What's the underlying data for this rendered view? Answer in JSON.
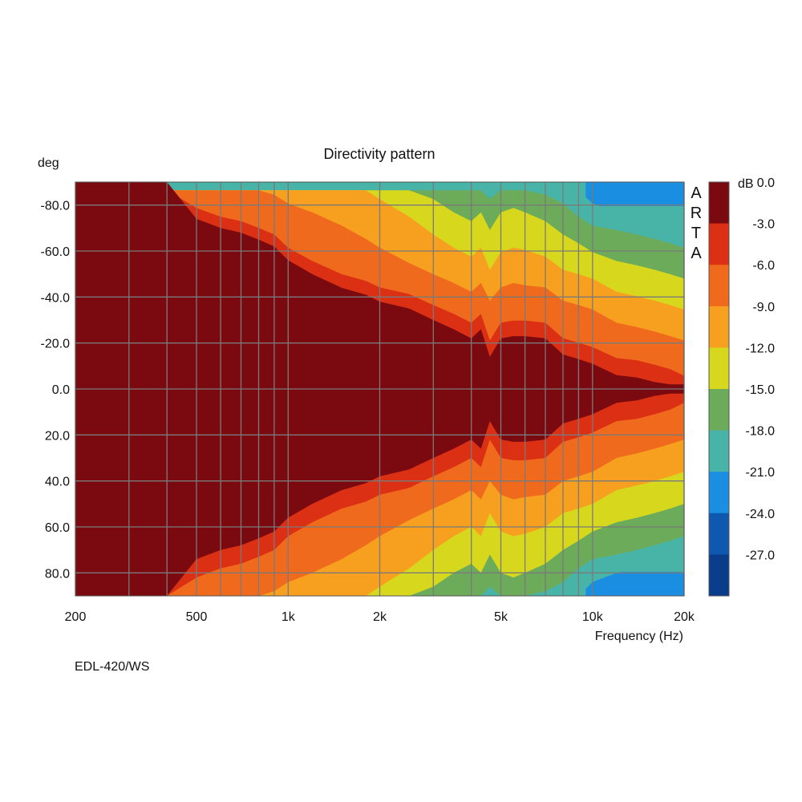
{
  "chart_data": {
    "type": "heatmap",
    "title": "Directivity pattern",
    "ylabel": "deg",
    "xlabel": "Frequency (Hz)",
    "colorbar_label": "dB",
    "watermark": "ARTA",
    "footer": "EDL-420/WS",
    "x_scale": "log",
    "xlim": [
      200,
      20000
    ],
    "ylim": [
      -90,
      90
    ],
    "y_inverted": true,
    "grid": true,
    "x_ticks": [
      {
        "value": 200,
        "label": "200"
      },
      {
        "value": 500,
        "label": "500"
      },
      {
        "value": 1000,
        "label": "1k"
      },
      {
        "value": 2000,
        "label": "2k"
      },
      {
        "value": 5000,
        "label": "5k"
      },
      {
        "value": 10000,
        "label": "10k"
      },
      {
        "value": 20000,
        "label": "20k"
      }
    ],
    "y_ticks": [
      {
        "value": -80,
        "label": "-80.0"
      },
      {
        "value": -60,
        "label": "-60.0"
      },
      {
        "value": -40,
        "label": "-40.0"
      },
      {
        "value": -20,
        "label": "-20.0"
      },
      {
        "value": 0,
        "label": "0.0"
      },
      {
        "value": 20,
        "label": "20.0"
      },
      {
        "value": 40,
        "label": "40.0"
      },
      {
        "value": 60,
        "label": "60.0"
      },
      {
        "value": 80,
        "label": "80.0"
      }
    ],
    "x_gridlines": [
      200,
      300,
      400,
      500,
      600,
      700,
      800,
      900,
      1000,
      2000,
      3000,
      4000,
      5000,
      6000,
      7000,
      8000,
      9000,
      10000,
      20000
    ],
    "y_gridlines": [
      -80,
      -60,
      -40,
      -20,
      0,
      20,
      40,
      60,
      80
    ],
    "colorbar": {
      "levels": [
        {
          "label": "0.0",
          "color": "#7a0a10"
        },
        {
          "label": "-3.0",
          "color": "#dc3014"
        },
        {
          "label": "-6.0",
          "color": "#ef6a1c"
        },
        {
          "label": "-9.0",
          "color": "#f7a020"
        },
        {
          "label": "-12.0",
          "color": "#d7d81e"
        },
        {
          "label": "-15.0",
          "color": "#6cab5a"
        },
        {
          "label": "-18.0",
          "color": "#48b4a8"
        },
        {
          "label": "-21.0",
          "color": "#1a8ee0"
        },
        {
          "label": "-24.0",
          "color": "#0e58b0"
        },
        {
          "label": "-27.0",
          "color": "#0a3c8c"
        }
      ]
    },
    "contour_boundaries": {
      "frequencies": [
        200,
        300,
        400,
        500,
        600,
        700,
        800,
        900,
        1000,
        1200,
        1500,
        1800,
        2000,
        2500,
        3000,
        3500,
        4000,
        4300,
        4600,
        5000,
        5500,
        6000,
        7000,
        8000,
        9000,
        10000,
        12000,
        14000,
        16000,
        18000,
        20000
      ],
      "minus3dB_deg": [
        90,
        90,
        90,
        82,
        78,
        76,
        73,
        70,
        64,
        58,
        52,
        49,
        46,
        43,
        38,
        34,
        30,
        34,
        22,
        30,
        31,
        31,
        30,
        23,
        21,
        19,
        14,
        13,
        11,
        9,
        6
      ],
      "minus6dB_deg": [
        90,
        90,
        90,
        90,
        90,
        90,
        90,
        88,
        84,
        80,
        74,
        68,
        64,
        57,
        52,
        48,
        44,
        48,
        40,
        46,
        48,
        47,
        46,
        40,
        38,
        36,
        30,
        28,
        26,
        24,
        22
      ],
      "minus9dB_deg": [
        90,
        90,
        90,
        90,
        90,
        90,
        90,
        90,
        90,
        90,
        90,
        90,
        86,
        78,
        70,
        64,
        60,
        64,
        54,
        62,
        64,
        63,
        60,
        54,
        52,
        50,
        44,
        42,
        40,
        38,
        36
      ],
      "minus12dB_deg": [
        90,
        90,
        90,
        90,
        90,
        90,
        90,
        90,
        90,
        90,
        90,
        90,
        90,
        90,
        86,
        80,
        76,
        80,
        72,
        80,
        82,
        80,
        76,
        70,
        66,
        62,
        58,
        56,
        54,
        52,
        50
      ],
      "minus15dB_deg": [
        90,
        90,
        90,
        90,
        90,
        90,
        90,
        90,
        90,
        90,
        90,
        90,
        90,
        90,
        90,
        90,
        90,
        90,
        86,
        90,
        90,
        90,
        88,
        84,
        78,
        74,
        72,
        70,
        68,
        66,
        64
      ],
      "minus18dB_deg": [
        90,
        90,
        90,
        90,
        90,
        90,
        90,
        90,
        90,
        90,
        90,
        90,
        90,
        90,
        90,
        90,
        90,
        90,
        90,
        90,
        90,
        90,
        90,
        90,
        90,
        84,
        80,
        78,
        76,
        78,
        80
      ]
    }
  }
}
